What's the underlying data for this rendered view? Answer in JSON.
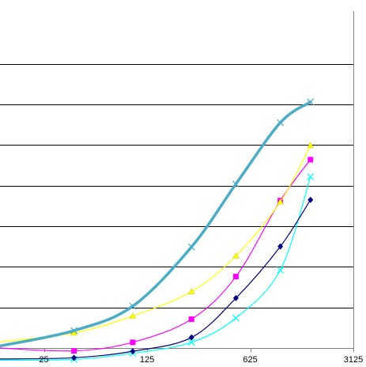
{
  "chart_data": {
    "type": "line",
    "x_scale": "log",
    "x_ticks": [
      25,
      125,
      625,
      3125
    ],
    "x_tick_labels": [
      "25",
      "125",
      "625",
      "3125"
    ],
    "xlim": [
      12.6,
      3125
    ],
    "ylim": [
      0,
      8.3
    ],
    "y_gridlines": [
      1,
      2,
      3,
      4,
      5,
      6,
      7
    ],
    "grid": true,
    "legend": "none",
    "x": [
      12.6,
      40,
      100,
      250,
      500,
      1000,
      1600
    ],
    "series": [
      {
        "color": "#4BACC6",
        "marker": "x",
        "line_width": 3.5,
        "values": [
          0.05,
          0.43,
          1.03,
          2.49,
          4.04,
          5.55,
          6.06
        ]
      },
      {
        "color": "#FFFF00",
        "marker": "triangle",
        "line_width": 1.2,
        "values": [
          0.15,
          0.37,
          0.79,
          1.39,
          2.27,
          3.6,
          4.99
        ]
      },
      {
        "color": "#FF00FF",
        "marker": "square",
        "line_width": 1.2,
        "values": [
          0.0,
          -0.07,
          0.14,
          0.71,
          1.76,
          3.63,
          4.64
        ]
      },
      {
        "color": "#000080",
        "marker": "diamond",
        "line_width": 1.2,
        "values": [
          -0.27,
          -0.24,
          -0.08,
          0.26,
          1.23,
          2.5,
          3.65
        ]
      },
      {
        "color": "#00FFFF",
        "marker": "x",
        "line_width": 1.2,
        "values": [
          -0.3,
          -0.28,
          -0.13,
          0.14,
          0.74,
          1.92,
          4.22
        ]
      }
    ]
  }
}
